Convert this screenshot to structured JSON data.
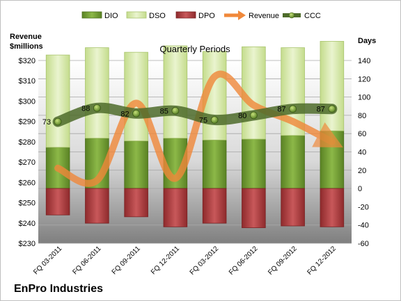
{
  "chart_data": {
    "type": "bar",
    "title": "Quarterly Periods",
    "company": "EnPro Industries",
    "y_left_label": [
      "Revenue",
      "$millions"
    ],
    "y_right_label": "Days",
    "y_left_ticks": [
      "$230",
      "$240",
      "$250",
      "$260",
      "$270",
      "$280",
      "$290",
      "$300",
      "$310",
      "$320"
    ],
    "y_right_ticks": [
      "-60",
      "-40",
      "-20",
      "0",
      "20",
      "40",
      "60",
      "80",
      "100",
      "120",
      "140"
    ],
    "y_left_range": [
      230,
      320
    ],
    "y_right_range": [
      -60,
      140
    ],
    "grid": true,
    "legend_position": "top",
    "categories": [
      "FQ 03-2011",
      "FQ 06-2011",
      "FQ 09-2011",
      "FQ 12-2011",
      "FQ 03-2012",
      "FQ 06-2012",
      "FQ 09-2012",
      "FQ 12-2012"
    ],
    "series": [
      {
        "name": "DIO",
        "kind": "bar",
        "axis": "right",
        "values": [
          45,
          55,
          52,
          55,
          53,
          54,
          58,
          63
        ],
        "color": "#6e9a2e"
      },
      {
        "name": "DSO",
        "kind": "bar",
        "axis": "right",
        "stacked_on": "DIO",
        "values": [
          101,
          99,
          97,
          101,
          97,
          101,
          96,
          98
        ],
        "color": "#d7e8a8"
      },
      {
        "name": "DPO",
        "kind": "bar",
        "axis": "right",
        "values": [
          -29,
          -38,
          -31,
          -42,
          -38,
          -43,
          -41,
          -42
        ],
        "color": "#b03a3c"
      },
      {
        "name": "Revenue",
        "kind": "line",
        "axis": "left",
        "values": [
          267,
          261,
          299,
          262,
          312,
          298,
          290,
          280
        ],
        "color": "#f0883a"
      },
      {
        "name": "CCC",
        "kind": "line",
        "axis": "right",
        "values": [
          73,
          88,
          82,
          85,
          75,
          80,
          87,
          87
        ],
        "labels": [
          "73",
          "88",
          "82",
          "85",
          "75",
          "80",
          "87",
          "87"
        ],
        "color": "#4e6b2a"
      }
    ]
  }
}
